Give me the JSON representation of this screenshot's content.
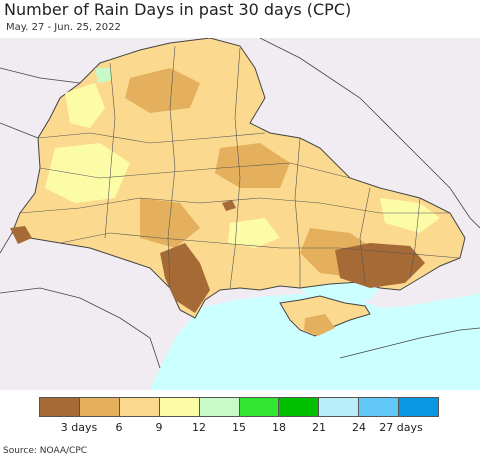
{
  "header": {
    "title": "Number of Rain Days in past 30 days (CPC)",
    "date_range": "May. 27 - Jun. 25, 2022"
  },
  "legend": {
    "colors": [
      "#a66a36",
      "#e4b05e",
      "#fbd98e",
      "#fdfca6",
      "#c8fac8",
      "#32e632",
      "#00c000",
      "#b8eefa",
      "#62c8f8",
      "#0a96e0"
    ],
    "labels": [
      "3 days",
      "6",
      "9",
      "12",
      "15",
      "18",
      "21",
      "24",
      "27 days"
    ]
  },
  "map": {
    "land_color": "#f0ecf2",
    "sea_color": "#ccffff"
  },
  "footer": {
    "source": "Source: NOAA/CPC"
  }
}
